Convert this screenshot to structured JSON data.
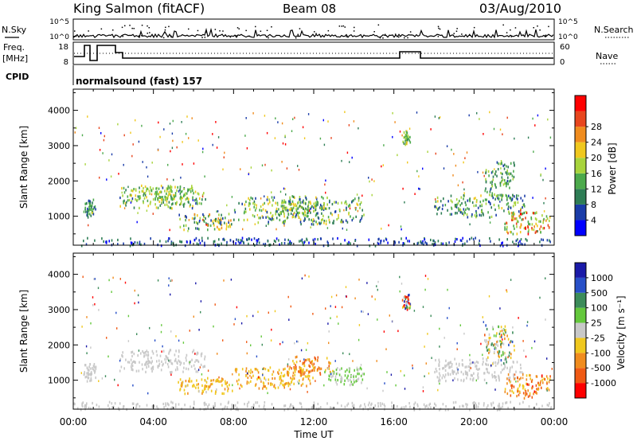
{
  "header": {
    "station": "King Salmon (fitACF)",
    "beam": "Beam 08",
    "date": "03/Aug/2010"
  },
  "noise_panel": {
    "left_label": "N.Sky",
    "right_label": "N.Search",
    "left_ticks": [
      "10^5",
      "10^0"
    ],
    "right_ticks": [
      "10^5",
      "10^0"
    ]
  },
  "freq_panel": {
    "left_label_1": "Freq.",
    "left_label_2": "[MHz]",
    "left_ticks": [
      "18",
      "8"
    ],
    "right_label": "Nave",
    "right_ticks": [
      "60",
      "0"
    ]
  },
  "cpid": {
    "label": "CPID",
    "value": "normalsound (fast) 157"
  },
  "colors": {
    "power": [
      "#0000ff",
      "#1a3ca8",
      "#2e7d55",
      "#4caa4c",
      "#a8d43c",
      "#f0c81e",
      "#f08c1e",
      "#e8461e",
      "#ff0000"
    ],
    "velocity": [
      "#1a1aa8",
      "#2850c8",
      "#3c8c5a",
      "#64c83c",
      "#c8c8c8",
      "#f0c81e",
      "#f08c1e",
      "#f05a14",
      "#ff0000"
    ],
    "ground_scatter": "#a0a0a0"
  },
  "chart_data": [
    {
      "type": "heatmap",
      "name": "power",
      "xlabel": "",
      "ylabel": "Slant Range [km]",
      "x_ticks": [
        "00:00",
        "04:00",
        "08:00",
        "12:00",
        "16:00",
        "20:00",
        "00:00"
      ],
      "xlim_hours": [
        0,
        24
      ],
      "y_ticks": [
        1000,
        2000,
        3000,
        4000
      ],
      "ylim": [
        180,
        4600
      ],
      "colorbar": {
        "label": "Power [dB]",
        "ticks": [
          "4",
          "8",
          "12",
          "16",
          "20",
          "24",
          "28"
        ],
        "range": [
          0,
          30
        ]
      },
      "regions": [
        {
          "t": [
            0.5,
            1.1
          ],
          "r": [
            1000,
            1500
          ],
          "v": [
            4,
            14
          ]
        },
        {
          "t": [
            2.3,
            6.6
          ],
          "r": [
            1250,
            1900
          ],
          "v": [
            6,
            20
          ]
        },
        {
          "t": [
            3.0,
            6.0
          ],
          "r": [
            1500,
            1850
          ],
          "v": [
            10,
            18
          ]
        },
        {
          "t": [
            5.2,
            8.0
          ],
          "r": [
            650,
            1100
          ],
          "v": [
            4,
            22
          ]
        },
        {
          "t": [
            8.0,
            14.5
          ],
          "r": [
            800,
            1600
          ],
          "v": [
            4,
            18
          ]
        },
        {
          "t": [
            10.0,
            12.5
          ],
          "r": [
            1000,
            1450
          ],
          "v": [
            8,
            20
          ]
        },
        {
          "t": [
            16.4,
            16.8
          ],
          "r": [
            3000,
            3450
          ],
          "v": [
            8,
            18
          ]
        },
        {
          "t": [
            18.0,
            22.5
          ],
          "r": [
            1000,
            1650
          ],
          "v": [
            4,
            18
          ]
        },
        {
          "t": [
            20.5,
            22.0
          ],
          "r": [
            1500,
            2600
          ],
          "v": [
            6,
            16
          ]
        },
        {
          "t": [
            21.5,
            23.8
          ],
          "r": [
            500,
            1200
          ],
          "v": [
            10,
            28
          ]
        },
        {
          "t": [
            0,
            24
          ],
          "r": [
            190,
            420
          ],
          "v": [
            2,
            10
          ]
        }
      ]
    },
    {
      "type": "heatmap",
      "name": "velocity",
      "xlabel": "Time UT",
      "ylabel": "Slant Range [km]",
      "x_ticks": [
        "00:00",
        "04:00",
        "08:00",
        "12:00",
        "16:00",
        "20:00",
        "00:00"
      ],
      "xlim_hours": [
        0,
        24
      ],
      "y_ticks": [
        1000,
        2000,
        3000,
        4000
      ],
      "ylim": [
        180,
        4600
      ],
      "colorbar": {
        "label": "Velocity [m s⁻¹]",
        "ticks": [
          "1000",
          "500",
          "100",
          "25",
          "-25",
          "-100",
          "-500",
          "-1000"
        ],
        "range": [
          -1000,
          1000
        ]
      },
      "regions": [
        {
          "t": [
            0.5,
            1.1
          ],
          "r": [
            1000,
            1500
          ],
          "v": [
            -50,
            50
          ]
        },
        {
          "t": [
            2.3,
            6.6
          ],
          "r": [
            1250,
            1900
          ],
          "v": [
            -30,
            30
          ]
        },
        {
          "t": [
            5.2,
            8.0
          ],
          "r": [
            650,
            1100
          ],
          "v": [
            -400,
            -100
          ]
        },
        {
          "t": [
            8.0,
            12.0
          ],
          "r": [
            800,
            1400
          ],
          "v": [
            -500,
            -100
          ]
        },
        {
          "t": [
            10.5,
            13.0
          ],
          "r": [
            1200,
            1700
          ],
          "v": [
            -700,
            -200
          ]
        },
        {
          "t": [
            12.5,
            14.5
          ],
          "r": [
            900,
            1400
          ],
          "v": [
            50,
            200
          ]
        },
        {
          "t": [
            16.4,
            16.8
          ],
          "r": [
            3000,
            3450
          ],
          "v": [
            -1000,
            1000
          ]
        },
        {
          "t": [
            18.0,
            22.5
          ],
          "r": [
            1000,
            1650
          ],
          "v": [
            -30,
            30
          ]
        },
        {
          "t": [
            20.5,
            22.0
          ],
          "r": [
            1500,
            2600
          ],
          "v": [
            -600,
            600
          ]
        },
        {
          "t": [
            21.5,
            23.8
          ],
          "r": [
            500,
            1200
          ],
          "v": [
            -800,
            -200
          ]
        },
        {
          "t": [
            0,
            24
          ],
          "r": [
            190,
            420
          ],
          "v": [
            -100,
            100
          ]
        }
      ]
    }
  ]
}
